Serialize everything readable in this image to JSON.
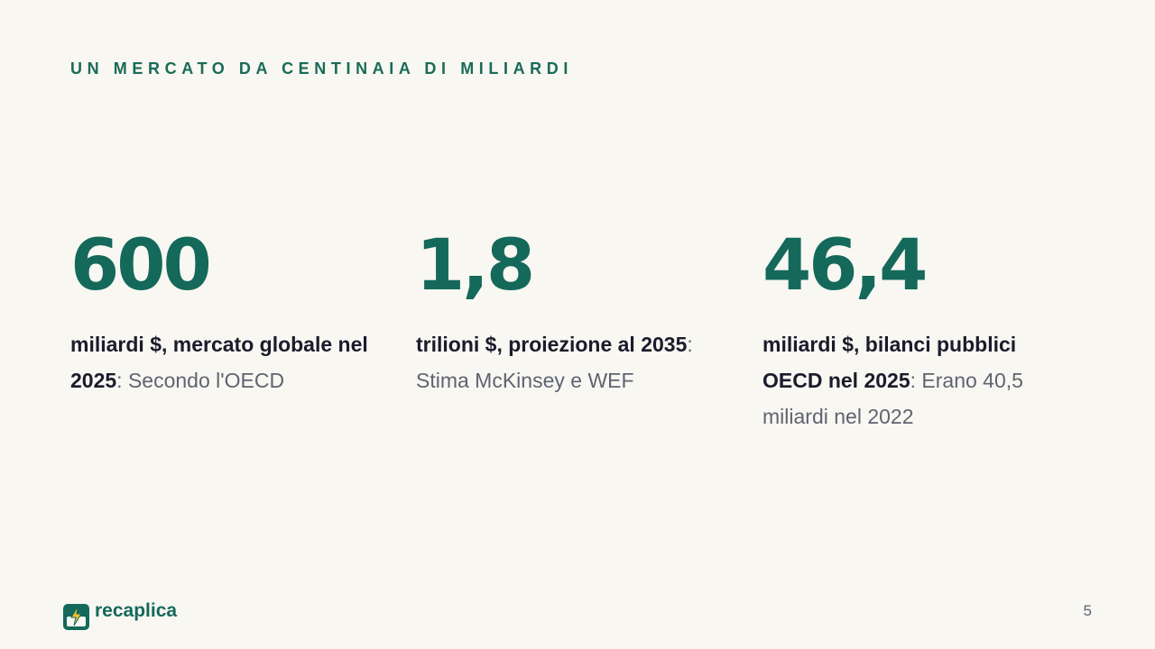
{
  "header": {
    "title": "UN MERCATO DA CENTINAIA DI MILIARDI"
  },
  "stats": [
    {
      "value": "600",
      "label": "miliardi $, mercato globale nel 2025",
      "note": ": Secondo l'OECD"
    },
    {
      "value": "1,8",
      "label": "trilioni $, proiezione al 2035",
      "note": ": Stima McKinsey e WEF"
    },
    {
      "value": "46,4",
      "label": "miliardi $, bilanci pubblici OECD nel 2025",
      "note": ": Erano 40,5 miliardi nel 2022"
    }
  ],
  "footer": {
    "brand": "recaplica",
    "page": "5"
  }
}
